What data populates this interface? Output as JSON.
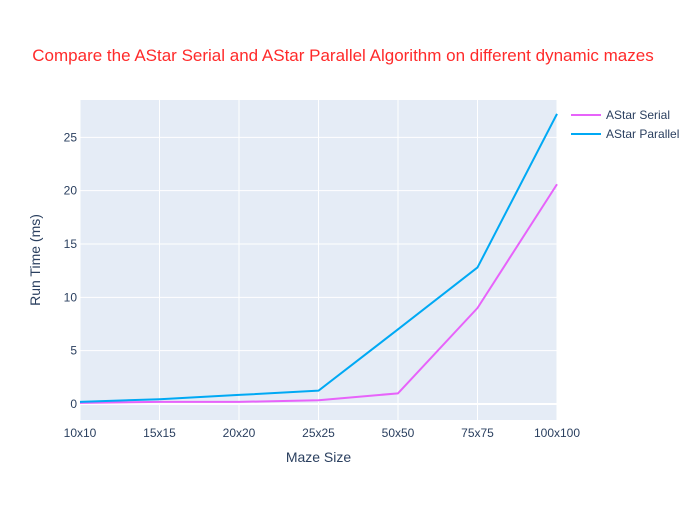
{
  "chart_data": {
    "type": "line",
    "title": "Compare the AStar Serial and AStar Parallel Algorithm on different dynamic mazes",
    "xlabel": "Maze Size",
    "ylabel": "Run Time (ms)",
    "categories": [
      "10x10",
      "15x15",
      "20x20",
      "25x25",
      "50x50",
      "75x75",
      "100x100"
    ],
    "ylim": [
      -1.5,
      28.5
    ],
    "yticks": [
      0,
      5,
      10,
      15,
      20,
      25
    ],
    "grid": true,
    "legend_position": "top-right",
    "series": [
      {
        "name": "AStar Serial",
        "color": "#e763fa",
        "values": [
          0.1,
          0.2,
          0.2,
          0.35,
          1.0,
          9.0,
          20.6
        ]
      },
      {
        "name": "AStar Parallel",
        "color": "#00a9f4",
        "values": [
          0.2,
          0.45,
          0.85,
          1.25,
          7.0,
          12.8,
          27.2
        ]
      }
    ],
    "colors": {
      "title": "#ff2a2a",
      "plot_background": "#e5ecf6",
      "gridline": "#ffffff",
      "axis_text": "#2a3f5f"
    }
  }
}
